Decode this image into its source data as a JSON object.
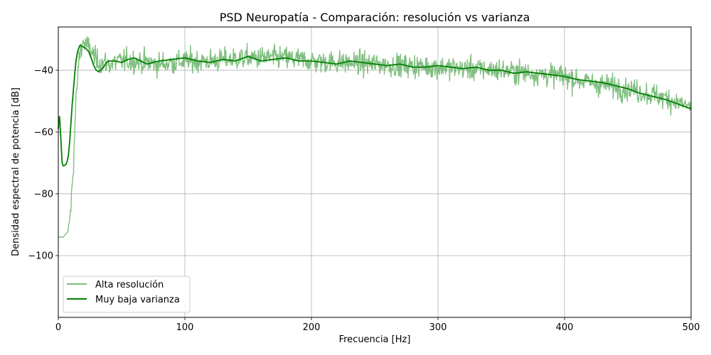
{
  "chart_data": {
    "type": "line",
    "title": "PSD Neuropatía - Comparación: resolución vs varianza",
    "xlabel": "Frecuencia [Hz]",
    "ylabel": "Densidad espectral de potencia [dB]",
    "xlim": [
      0,
      500
    ],
    "ylim": [
      -120,
      -26
    ],
    "xticks": [
      0,
      100,
      200,
      300,
      400,
      500
    ],
    "xtick_labels": [
      "0",
      "100",
      "200",
      "300",
      "400",
      "500"
    ],
    "yticks": [
      -100,
      -80,
      -60,
      -40
    ],
    "ytick_labels": [
      "−100",
      "−80",
      "−60",
      "−40"
    ],
    "grid": true,
    "legend_position": "lower-left",
    "series": [
      {
        "name": "Alta resolución",
        "color": "#7fbf7f",
        "style": "noisy",
        "x": [
          0,
          4,
          6,
          8,
          10,
          12,
          14,
          16,
          18,
          20,
          22,
          25,
          30,
          40,
          50,
          60,
          80,
          100,
          120,
          150,
          180,
          200,
          250,
          300,
          350,
          400,
          420,
          450,
          480,
          500
        ],
        "y": [
          -94,
          -94,
          -93,
          -92,
          -84,
          -70,
          -50,
          -38,
          -32,
          -31,
          -32,
          -33,
          -37,
          -38,
          -37,
          -37,
          -38,
          -37,
          -37,
          -36,
          -36,
          -37,
          -38,
          -39,
          -40,
          -42,
          -44,
          -46,
          -49,
          -52
        ]
      },
      {
        "name": "Muy baja varianza",
        "color": "#008000",
        "style": "smooth",
        "x": [
          0,
          0.5,
          1,
          2,
          3,
          4,
          5,
          6,
          7,
          8,
          9,
          10,
          11,
          12,
          13,
          14,
          15,
          16,
          17,
          18,
          19,
          20,
          22,
          24,
          26,
          28,
          30,
          32,
          35,
          38,
          40,
          45,
          50,
          55,
          60,
          65,
          70,
          75,
          80,
          90,
          100,
          110,
          120,
          130,
          140,
          150,
          160,
          170,
          180,
          190,
          200,
          210,
          220,
          230,
          240,
          250,
          260,
          270,
          280,
          290,
          300,
          310,
          320,
          330,
          340,
          350,
          360,
          370,
          380,
          390,
          400,
          410,
          420,
          430,
          440,
          450,
          460,
          470,
          480,
          490,
          500
        ],
        "y": [
          -59,
          -56,
          -55,
          -62,
          -70,
          -71,
          -70.8,
          -70.5,
          -69.5,
          -67.5,
          -63,
          -57,
          -51,
          -46,
          -41,
          -37,
          -34.5,
          -33,
          -32,
          -32,
          -32.3,
          -32.5,
          -33,
          -34,
          -36,
          -38.5,
          -40,
          -40.5,
          -39.5,
          -37.5,
          -37,
          -37,
          -37.5,
          -36.5,
          -36,
          -37,
          -38,
          -37.5,
          -37,
          -36.5,
          -36,
          -37,
          -37.5,
          -36.5,
          -37,
          -35.5,
          -37,
          -36.5,
          -36,
          -37,
          -37,
          -37.5,
          -38,
          -37,
          -37.5,
          -38,
          -38.5,
          -38,
          -39,
          -39,
          -38.5,
          -39,
          -39.5,
          -39,
          -40,
          -40,
          -41,
          -40.5,
          -41,
          -41.5,
          -42,
          -43,
          -43.5,
          -44,
          -45,
          -46,
          -47.5,
          -48.5,
          -49.5,
          -51,
          -52.5
        ]
      }
    ]
  }
}
